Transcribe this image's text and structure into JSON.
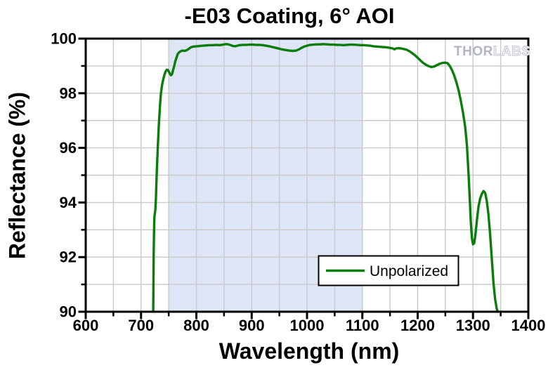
{
  "figure": {
    "watermark": {
      "solid": "THOR",
      "outline": "LABS"
    }
  },
  "colors": {
    "curve": "#0a7d0a",
    "band": "#dee5f6",
    "grid": "#c9c9c9",
    "axis": "#000000",
    "legend_border": "#000000",
    "legend_fill": "#ffffff",
    "watermark_solid": "#b2b6c1",
    "watermark_outline": "#c5c8d0"
  },
  "chart_data": {
    "type": "line",
    "title": "-E03 Coating, 6° AOI",
    "xlabel": "Wavelength (nm)",
    "ylabel": "Reflectance (%)",
    "xlim": [
      600,
      1400
    ],
    "ylim": [
      90,
      100
    ],
    "x_major_ticks": [
      600,
      700,
      800,
      900,
      1000,
      1100,
      1200,
      1300,
      1400
    ],
    "x_minor_step": 50,
    "y_major_ticks": [
      90,
      92,
      94,
      96,
      98,
      100
    ],
    "y_minor_step": 1,
    "grid": true,
    "legend_position": "lower right",
    "shaded_region": {
      "x_start": 750,
      "x_end": 1100
    },
    "series": [
      {
        "name": "Unpolarized",
        "color": "#0a7d0a",
        "points": [
          [
            722,
            90
          ],
          [
            722.4,
            91.0
          ],
          [
            722.8,
            92.0
          ],
          [
            723.4,
            92.9
          ],
          [
            724,
            93.45
          ],
          [
            725,
            93.6
          ],
          [
            726,
            93.75
          ],
          [
            727,
            94.2
          ],
          [
            728,
            94.85
          ],
          [
            729,
            95.4
          ],
          [
            730,
            95.9
          ],
          [
            731,
            96.35
          ],
          [
            732,
            96.75
          ],
          [
            733,
            97.1
          ],
          [
            734,
            97.45
          ],
          [
            735,
            97.75
          ],
          [
            736,
            98.0
          ],
          [
            738,
            98.3
          ],
          [
            740,
            98.5
          ],
          [
            742,
            98.65
          ],
          [
            744,
            98.78
          ],
          [
            746,
            98.85
          ],
          [
            748,
            98.86
          ],
          [
            750,
            98.8
          ],
          [
            752,
            98.72
          ],
          [
            754,
            98.66
          ],
          [
            756,
            98.7
          ],
          [
            758,
            98.85
          ],
          [
            760,
            99.0
          ],
          [
            762,
            99.18
          ],
          [
            764,
            99.3
          ],
          [
            766,
            99.42
          ],
          [
            768,
            99.48
          ],
          [
            770,
            99.52
          ],
          [
            773,
            99.55
          ],
          [
            776,
            99.56
          ],
          [
            779,
            99.55
          ],
          [
            782,
            99.57
          ],
          [
            785,
            99.61
          ],
          [
            788,
            99.65
          ],
          [
            791,
            99.69
          ],
          [
            795,
            99.71
          ],
          [
            800,
            99.72
          ],
          [
            806,
            99.73
          ],
          [
            812,
            99.74
          ],
          [
            818,
            99.75
          ],
          [
            824,
            99.76
          ],
          [
            830,
            99.76
          ],
          [
            836,
            99.77
          ],
          [
            842,
            99.76
          ],
          [
            848,
            99.78
          ],
          [
            854,
            99.8
          ],
          [
            858,
            99.79
          ],
          [
            862,
            99.76
          ],
          [
            866,
            99.73
          ],
          [
            870,
            99.72
          ],
          [
            874,
            99.74
          ],
          [
            878,
            99.76
          ],
          [
            884,
            99.77
          ],
          [
            890,
            99.77
          ],
          [
            896,
            99.78
          ],
          [
            902,
            99.78
          ],
          [
            908,
            99.77
          ],
          [
            914,
            99.77
          ],
          [
            920,
            99.76
          ],
          [
            926,
            99.74
          ],
          [
            932,
            99.72
          ],
          [
            938,
            99.69
          ],
          [
            944,
            99.66
          ],
          [
            950,
            99.63
          ],
          [
            956,
            99.6
          ],
          [
            962,
            99.58
          ],
          [
            968,
            99.56
          ],
          [
            974,
            99.55
          ],
          [
            980,
            99.56
          ],
          [
            985,
            99.6
          ],
          [
            990,
            99.66
          ],
          [
            995,
            99.71
          ],
          [
            1000,
            99.74
          ],
          [
            1006,
            99.77
          ],
          [
            1012,
            99.78
          ],
          [
            1018,
            99.79
          ],
          [
            1024,
            99.79
          ],
          [
            1030,
            99.8
          ],
          [
            1036,
            99.79
          ],
          [
            1042,
            99.78
          ],
          [
            1048,
            99.78
          ],
          [
            1054,
            99.77
          ],
          [
            1060,
            99.77
          ],
          [
            1066,
            99.76
          ],
          [
            1072,
            99.77
          ],
          [
            1078,
            99.78
          ],
          [
            1084,
            99.78
          ],
          [
            1090,
            99.77
          ],
          [
            1096,
            99.76
          ],
          [
            1102,
            99.76
          ],
          [
            1108,
            99.75
          ],
          [
            1114,
            99.74
          ],
          [
            1120,
            99.72
          ],
          [
            1126,
            99.71
          ],
          [
            1132,
            99.7
          ],
          [
            1138,
            99.69
          ],
          [
            1144,
            99.68
          ],
          [
            1150,
            99.66
          ],
          [
            1155,
            99.64
          ],
          [
            1158,
            99.61
          ],
          [
            1161,
            99.64
          ],
          [
            1165,
            99.65
          ],
          [
            1170,
            99.64
          ],
          [
            1175,
            99.62
          ],
          [
            1180,
            99.59
          ],
          [
            1185,
            99.54
          ],
          [
            1190,
            99.47
          ],
          [
            1195,
            99.39
          ],
          [
            1200,
            99.3
          ],
          [
            1205,
            99.2
          ],
          [
            1210,
            99.11
          ],
          [
            1215,
            99.04
          ],
          [
            1220,
            98.99
          ],
          [
            1225,
            98.96
          ],
          [
            1230,
            98.98
          ],
          [
            1235,
            99.03
          ],
          [
            1240,
            99.08
          ],
          [
            1245,
            99.11
          ],
          [
            1250,
            99.12
          ],
          [
            1254,
            99.1
          ],
          [
            1258,
            99.0
          ],
          [
            1262,
            98.85
          ],
          [
            1266,
            98.65
          ],
          [
            1270,
            98.4
          ],
          [
            1274,
            98.1
          ],
          [
            1278,
            97.72
          ],
          [
            1282,
            97.28
          ],
          [
            1286,
            96.75
          ],
          [
            1289,
            96.1
          ],
          [
            1292,
            95.0
          ],
          [
            1294,
            94.2
          ],
          [
            1296,
            93.3
          ],
          [
            1298,
            92.7
          ],
          [
            1300,
            92.47
          ],
          [
            1302,
            92.5
          ],
          [
            1304,
            92.75
          ],
          [
            1307,
            93.35
          ],
          [
            1310,
            93.85
          ],
          [
            1313,
            94.15
          ],
          [
            1316,
            94.32
          ],
          [
            1319,
            94.42
          ],
          [
            1322,
            94.35
          ],
          [
            1325,
            94.05
          ],
          [
            1328,
            93.55
          ],
          [
            1331,
            92.8
          ],
          [
            1334,
            91.95
          ],
          [
            1337,
            91.05
          ],
          [
            1340,
            90.45
          ],
          [
            1343,
            90.1
          ],
          [
            1345,
            90.0
          ]
        ]
      }
    ]
  }
}
